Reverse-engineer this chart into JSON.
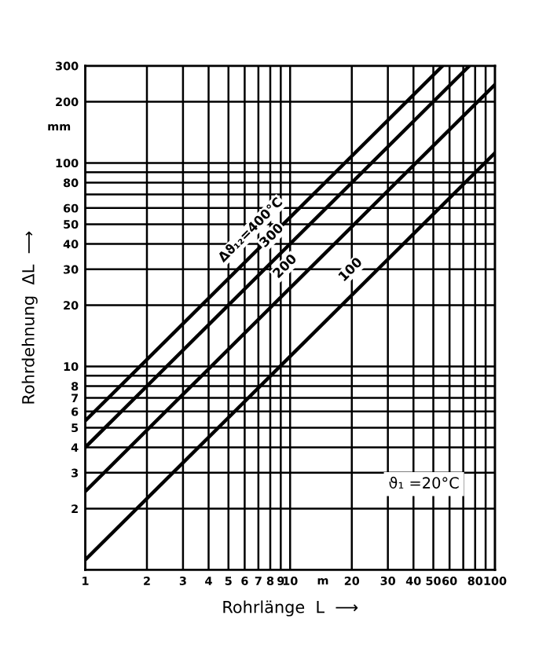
{
  "chart_data": {
    "type": "line",
    "xlabel": "Rohrlänge  L  ⟶",
    "ylabel": "Rohrdehnung  ΔL  ⟶",
    "log": "xy",
    "grid": true,
    "legend": false,
    "marker": "none",
    "line_style": "solid",
    "series": [
      {
        "name": "Δϑ₁₂=400°C",
        "color": "#000000",
        "x": [
          1,
          55.5
        ],
        "values": [
          5.4,
          300
        ]
      },
      {
        "name": "300",
        "color": "#000000",
        "x": [
          1,
          75
        ],
        "values": [
          4,
          300
        ]
      },
      {
        "name": "200",
        "color": "#000000",
        "x": [
          1,
          100
        ],
        "values": [
          2.43,
          243
        ]
      },
      {
        "name": "100",
        "color": "#000000",
        "x": [
          1,
          100
        ],
        "values": [
          1.12,
          112
        ]
      }
    ],
    "xlim": [
      1,
      100
    ],
    "ylim": [
      1,
      300
    ],
    "xticks": [
      1,
      2,
      3,
      4,
      5,
      6,
      7,
      8,
      9,
      10,
      20,
      30,
      40,
      50,
      60,
      {
        "value": 70,
        "label": null
      },
      80,
      {
        "value": 90,
        "label": null
      },
      100
    ],
    "yticks": [
      {
        "value": 1,
        "label": null
      },
      2,
      3,
      4,
      5,
      6,
      7,
      8,
      {
        "value": 9,
        "label": null
      },
      10,
      20,
      30,
      40,
      50,
      60,
      {
        "value": 70,
        "label": null
      },
      80,
      {
        "value": 90,
        "label": null
      },
      100,
      200,
      300
    ],
    "annotations": [
      "mm",
      "m",
      "ϑ₁ =20°C"
    ]
  }
}
